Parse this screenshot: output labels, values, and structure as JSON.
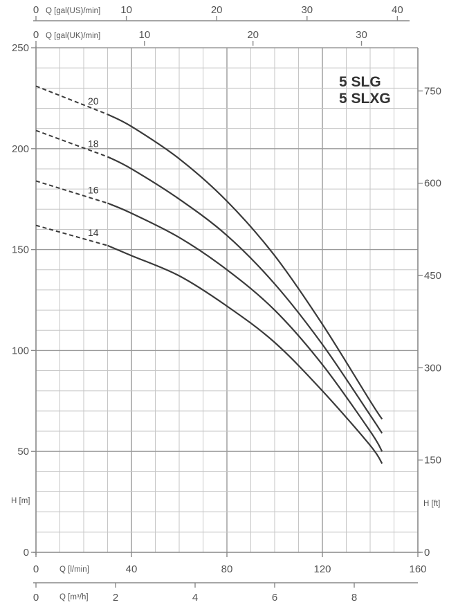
{
  "chart_data": {
    "type": "line",
    "models": [
      "5 SLG",
      "5 SLXG"
    ],
    "x_unit": "Q [l/min]",
    "x_ticks": [
      "0",
      "40",
      "80",
      "120",
      "160"
    ],
    "xlim": [
      0,
      160
    ],
    "y_unit": "H [m]",
    "y_ticks": [
      "0",
      "50",
      "100",
      "150",
      "200",
      "250"
    ],
    "ylim": [
      0,
      250
    ],
    "secondary_axes": {
      "ft": {
        "label": "H [ft]",
        "ticks": [
          "0",
          "150",
          "300",
          "450",
          "600",
          "750"
        ]
      },
      "m3h": {
        "label": "Q [m³/h]",
        "ticks": [
          "0",
          "2",
          "4",
          "6",
          "8"
        ]
      },
      "gal_us": {
        "label": "Q [gal(US)/min]",
        "ticks": [
          "0",
          "10",
          "20",
          "30",
          "40"
        ]
      },
      "gal_uk": {
        "label": "Q [gal(UK)/min]",
        "ticks": [
          "0",
          "10",
          "20",
          "30"
        ]
      }
    },
    "grid": true,
    "dashed_until_x": 30,
    "series": [
      {
        "name": "20",
        "x": [
          0,
          30,
          40,
          60,
          80,
          100,
          120,
          140,
          145
        ],
        "y": [
          231,
          217,
          211,
          195,
          174,
          147,
          113,
          75,
          66
        ]
      },
      {
        "name": "18",
        "x": [
          0,
          30,
          40,
          60,
          80,
          100,
          120,
          140,
          145
        ],
        "y": [
          209,
          196,
          190,
          175,
          157,
          133,
          103,
          68,
          59
        ]
      },
      {
        "name": "16",
        "x": [
          0,
          30,
          40,
          60,
          80,
          100,
          120,
          140,
          145
        ],
        "y": [
          184,
          173,
          168,
          156,
          140,
          120,
          93,
          60,
          50
        ]
      },
      {
        "name": "14",
        "x": [
          0,
          30,
          40,
          60,
          80,
          100,
          120,
          140,
          145
        ],
        "y": [
          162,
          152,
          147,
          137,
          122,
          104,
          80,
          53,
          44
        ]
      }
    ]
  }
}
